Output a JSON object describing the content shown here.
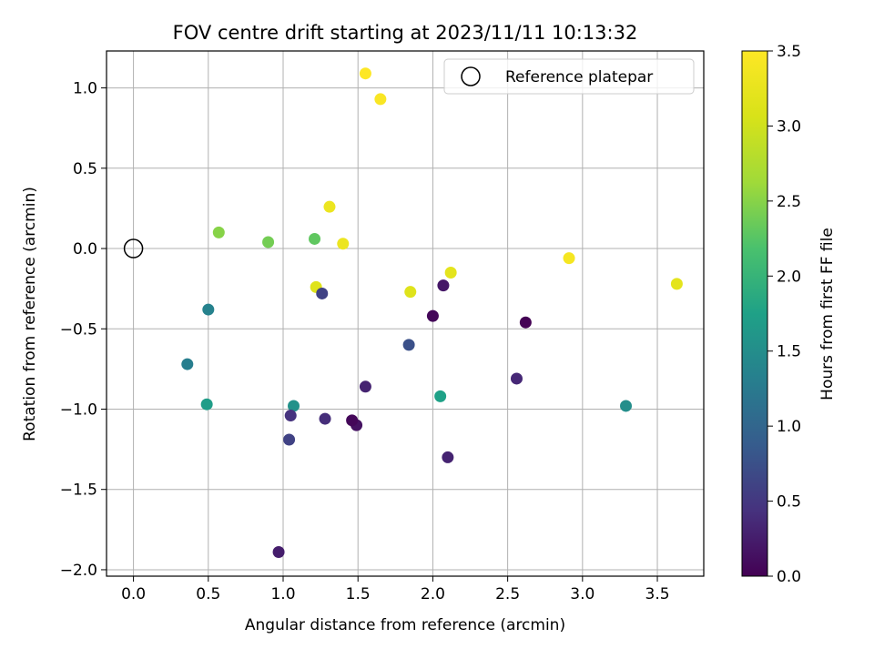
{
  "chart_data": {
    "type": "scatter",
    "title": "FOV centre drift starting at 2023/11/11 10:13:32",
    "xlabel": "Angular distance from reference (arcmin)",
    "ylabel": "Rotation from reference (arcmin)",
    "xlim": [
      -0.18,
      3.81
    ],
    "ylim": [
      -2.04,
      1.23
    ],
    "xticks": [
      0.0,
      0.5,
      1.0,
      1.5,
      2.0,
      2.5,
      3.0,
      3.5
    ],
    "xtick_labels": [
      "0.0",
      "0.5",
      "1.0",
      "1.5",
      "2.0",
      "2.5",
      "3.0",
      "3.5"
    ],
    "yticks": [
      -2.0,
      -1.5,
      -1.0,
      -0.5,
      0.0,
      0.5,
      1.0
    ],
    "ytick_labels": [
      "−2.0",
      "−1.5",
      "−1.0",
      "−0.5",
      "0.0",
      "0.5",
      "1.0"
    ],
    "grid": true,
    "legend": {
      "placement": "upper right",
      "entries": [
        "Reference platepar"
      ]
    },
    "reference_point": {
      "x": 0.0,
      "y": 0.0
    },
    "colorbar": {
      "label": "Hours from first FF file",
      "colormap": "viridis",
      "range": [
        0.0,
        3.5
      ],
      "ticks": [
        0.0,
        0.5,
        1.0,
        1.5,
        2.0,
        2.5,
        3.0,
        3.5
      ],
      "tick_labels": [
        "0.0",
        "0.5",
        "1.0",
        "1.5",
        "2.0",
        "2.5",
        "3.0",
        "3.5"
      ]
    },
    "points": [
      {
        "x": 1.55,
        "y": 1.09,
        "hours": 3.5
      },
      {
        "x": 1.65,
        "y": 0.93,
        "hours": 3.45
      },
      {
        "x": 2.91,
        "y": -0.06,
        "hours": 3.4
      },
      {
        "x": 1.31,
        "y": 0.26,
        "hours": 3.3
      },
      {
        "x": 1.4,
        "y": 0.03,
        "hours": 3.3
      },
      {
        "x": 2.12,
        "y": -0.15,
        "hours": 3.2
      },
      {
        "x": 3.63,
        "y": -0.22,
        "hours": 3.2
      },
      {
        "x": 1.22,
        "y": -0.24,
        "hours": 3.15
      },
      {
        "x": 1.85,
        "y": -0.27,
        "hours": 3.15
      },
      {
        "x": 0.57,
        "y": 0.1,
        "hours": 2.5
      },
      {
        "x": 0.9,
        "y": 0.04,
        "hours": 2.4
      },
      {
        "x": 1.21,
        "y": 0.06,
        "hours": 2.3
      },
      {
        "x": 2.05,
        "y": -0.92,
        "hours": 1.75
      },
      {
        "x": 0.49,
        "y": -0.97,
        "hours": 1.7
      },
      {
        "x": 1.07,
        "y": -0.98,
        "hours": 1.55
      },
      {
        "x": 3.29,
        "y": -0.98,
        "hours": 1.5
      },
      {
        "x": 0.5,
        "y": -0.38,
        "hours": 1.35
      },
      {
        "x": 0.36,
        "y": -0.72,
        "hours": 1.3
      },
      {
        "x": 1.84,
        "y": -0.6,
        "hours": 0.75
      },
      {
        "x": 1.26,
        "y": -0.28,
        "hours": 0.6
      },
      {
        "x": 1.04,
        "y": -1.19,
        "hours": 0.6
      },
      {
        "x": 1.05,
        "y": -1.04,
        "hours": 0.45
      },
      {
        "x": 1.28,
        "y": -1.06,
        "hours": 0.4
      },
      {
        "x": 2.56,
        "y": -0.81,
        "hours": 0.35
      },
      {
        "x": 1.55,
        "y": -0.86,
        "hours": 0.3
      },
      {
        "x": 2.1,
        "y": -1.3,
        "hours": 0.3
      },
      {
        "x": 0.97,
        "y": -1.89,
        "hours": 0.25
      },
      {
        "x": 2.07,
        "y": -0.23,
        "hours": 0.2
      },
      {
        "x": 1.49,
        "y": -1.1,
        "hours": 0.15
      },
      {
        "x": 1.46,
        "y": -1.07,
        "hours": 0.05
      },
      {
        "x": 2.0,
        "y": -0.42,
        "hours": 0.05
      },
      {
        "x": 2.62,
        "y": -0.46,
        "hours": 0.0
      }
    ]
  }
}
